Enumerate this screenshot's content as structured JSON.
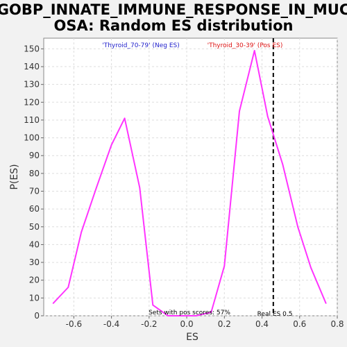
{
  "chart_data": {
    "type": "line",
    "title_lines": [
      "GOBP_INNATE_IMMUNE_RESPONSE_IN_MUC",
      "OSA: Random ES distribution"
    ],
    "xlabel": "ES",
    "ylabel": "P(ES)",
    "xlim": [
      -0.76,
      0.8
    ],
    "ylim": [
      0,
      156
    ],
    "x_ticks": [
      "-0.6",
      "-0.4",
      "-0.2",
      "0.0",
      "0.2",
      "0.4",
      "0.6",
      "0.8"
    ],
    "x_tick_values": [
      -0.6,
      -0.4,
      -0.2,
      0.0,
      0.2,
      0.4,
      0.6,
      0.8
    ],
    "y_ticks": [
      "0",
      "10",
      "20",
      "30",
      "40",
      "50",
      "60",
      "70",
      "80",
      "90",
      "100",
      "110",
      "120",
      "130",
      "140",
      "150"
    ],
    "y_tick_values": [
      0,
      10,
      20,
      30,
      40,
      50,
      60,
      70,
      80,
      90,
      100,
      110,
      120,
      130,
      140,
      150
    ],
    "grid": true,
    "series": [
      {
        "color": "#ff33ff",
        "points": [
          [
            -0.71,
            7
          ],
          [
            -0.63,
            16
          ],
          [
            -0.56,
            47
          ],
          [
            -0.48,
            72
          ],
          [
            -0.4,
            96
          ],
          [
            -0.33,
            111
          ],
          [
            -0.25,
            72
          ],
          [
            -0.18,
            6
          ],
          [
            -0.1,
            0
          ],
          [
            -0.02,
            0
          ],
          [
            0.05,
            0
          ],
          [
            0.13,
            2
          ],
          [
            0.2,
            28
          ],
          [
            0.28,
            115
          ],
          [
            0.36,
            149
          ],
          [
            0.43,
            112
          ],
          [
            0.51,
            85
          ],
          [
            0.59,
            50
          ],
          [
            0.66,
            27
          ],
          [
            0.74,
            7
          ]
        ]
      }
    ],
    "real_es": {
      "x": 0.46,
      "color": "#000000",
      "label": "Real ES 0.5"
    },
    "annotations": {
      "neg_label": "'Thyroid_70-79' (Neg ES)",
      "neg_color": "#2222cc",
      "pos_label": "'Thyroid_30-39' (Pos ES)",
      "pos_color": "#dd1111",
      "pos_scores": "Sets with pos scores: 57%"
    }
  }
}
